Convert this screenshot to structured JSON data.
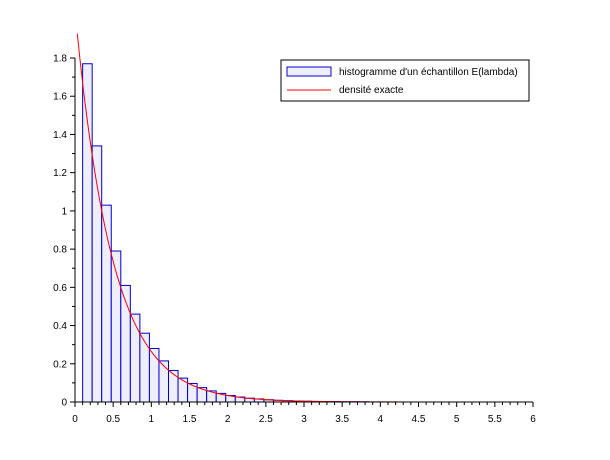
{
  "chart_data": {
    "type": "bar",
    "xlim": [
      0,
      6
    ],
    "ylim": [
      0,
      1.8
    ],
    "xticks": [
      "0",
      "0.5",
      "1",
      "1.5",
      "2",
      "2.5",
      "3",
      "3.5",
      "4",
      "4.5",
      "5",
      "5.5",
      "6"
    ],
    "yticks": [
      "0",
      "0.2",
      "0.4",
      "0.6",
      "0.8",
      "1",
      "1.2",
      "1.4",
      "1.6",
      "1.8"
    ],
    "grid": false,
    "legend_position": "top-right",
    "histogram": {
      "name": "histogramme d'un échantillon E(lambda)",
      "color": "#0000cc",
      "fill": "#eeeeff",
      "bin_start": 0.1,
      "bin_width": 0.125,
      "values": [
        1.77,
        1.34,
        1.03,
        0.79,
        0.61,
        0.46,
        0.36,
        0.28,
        0.215,
        0.165,
        0.125,
        0.097,
        0.075,
        0.058,
        0.045,
        0.034,
        0.026,
        0.02,
        0.016,
        0.012,
        0.009,
        0.007,
        0.005,
        0.004,
        0.003,
        0.002,
        0.002,
        0.001,
        0.001,
        0.001
      ]
    },
    "density": {
      "name": "densité exacte",
      "color": "#ff0000",
      "lambda": 2.05,
      "x_range": [
        0.03,
        5.3
      ]
    }
  }
}
